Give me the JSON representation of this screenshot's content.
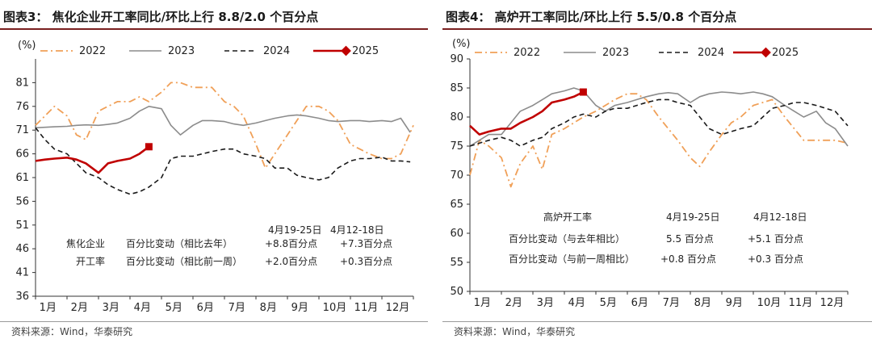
{
  "source_note": "资料来源：Wind，华泰研究",
  "chart_data": [
    {
      "type": "line",
      "title": "图表3：  焦化企业开工率同比/环比上行 8.8/2.0 个百分点",
      "ylabel": "(%)",
      "ylim": [
        36,
        86
      ],
      "yticks": [
        36,
        41,
        46,
        51,
        56,
        61,
        66,
        71,
        76,
        81
      ],
      "xlim": [
        1,
        13
      ],
      "month_labels": [
        "1月",
        "2月",
        "3月",
        "4月",
        "5月",
        "6月",
        "7月",
        "8月",
        "9月",
        "10月",
        "11月",
        "12月"
      ],
      "series": [
        {
          "name": "2022",
          "color": "#f0a058",
          "style": "dashdot",
          "x": [
            1.0,
            1.3,
            1.6,
            2.0,
            2.3,
            2.6,
            3.0,
            3.3,
            3.6,
            4.0,
            4.3,
            4.6,
            5.0,
            5.3,
            5.6,
            6.0,
            6.3,
            6.6,
            7.0,
            7.3,
            7.6,
            8.0,
            8.3,
            8.6,
            9.0,
            9.3,
            9.6,
            10.0,
            10.3,
            10.6,
            11.0,
            11.3,
            11.6,
            12.0,
            12.3,
            12.6,
            13.0
          ],
          "values": [
            72,
            74,
            76,
            74,
            70,
            69,
            75,
            76,
            77,
            77,
            78,
            77,
            79,
            81,
            81,
            80,
            80,
            80,
            77,
            76,
            74,
            68,
            63,
            66,
            70,
            73,
            76,
            76,
            75,
            73,
            68,
            67,
            66,
            65,
            65,
            66,
            72
          ]
        },
        {
          "name": "2023",
          "color": "#8c8c8c",
          "style": "solid",
          "x": [
            1.0,
            1.3,
            1.6,
            2.0,
            2.3,
            2.6,
            3.0,
            3.3,
            3.6,
            4.0,
            4.3,
            4.6,
            5.0,
            5.3,
            5.6,
            6.0,
            6.3,
            6.6,
            7.0,
            7.3,
            7.6,
            8.0,
            8.3,
            8.6,
            9.0,
            9.3,
            9.6,
            10.0,
            10.3,
            10.6,
            11.0,
            11.3,
            11.6,
            12.0,
            12.3,
            12.6,
            12.9
          ],
          "values": [
            71.5,
            71.6,
            71.7,
            71.8,
            72,
            72.1,
            72,
            72.2,
            72.5,
            73.5,
            75,
            76,
            75.5,
            72,
            70,
            72,
            73,
            73,
            72.8,
            72.3,
            72,
            72.5,
            73,
            73.5,
            74,
            74.2,
            74,
            73.5,
            73,
            72.8,
            73,
            73,
            72.8,
            73,
            72.8,
            73.5,
            70.5
          ]
        },
        {
          "name": "2024",
          "color": "#1a1a1a",
          "style": "dashed",
          "x": [
            1.0,
            1.3,
            1.6,
            2.0,
            2.3,
            2.6,
            3.0,
            3.3,
            3.6,
            4.0,
            4.3,
            4.6,
            5.0,
            5.3,
            5.6,
            6.0,
            6.3,
            6.6,
            7.0,
            7.3,
            7.6,
            8.0,
            8.3,
            8.6,
            9.0,
            9.3,
            9.6,
            10.0,
            10.3,
            10.6,
            11.0,
            11.3,
            11.6,
            12.0,
            12.3,
            12.6,
            12.9
          ],
          "values": [
            71.5,
            69,
            67,
            66,
            64,
            62,
            61,
            59.5,
            58.5,
            57.5,
            58,
            59,
            61,
            65,
            65.5,
            65.5,
            66,
            66.5,
            67,
            67,
            66,
            65.5,
            65,
            63,
            63,
            61.5,
            61,
            60.5,
            61,
            63,
            64.5,
            65,
            65,
            65.3,
            64.5,
            64.5,
            64.3
          ]
        },
        {
          "name": "2025",
          "color": "#c00000",
          "style": "solid-marker",
          "x": [
            1.0,
            1.3,
            1.6,
            2.0,
            2.3,
            2.6,
            3.0,
            3.3,
            3.6,
            4.0,
            4.3,
            4.6
          ],
          "values": [
            64.5,
            64.8,
            65,
            65.2,
            64.8,
            64,
            62,
            64,
            64.5,
            65,
            66,
            67.5
          ]
        }
      ],
      "annotation": {
        "col_current": "4月19-25日",
        "col_previous": "4月12-18日",
        "row_header_line1": "焦化企业",
        "row_header_line2": "开工率",
        "yoy_label": "百分比变动（相比去年）",
        "wow_label": "百分比变动（相比前一周）",
        "yoy_current": "+8.8百分点",
        "yoy_previous": "+7.3百分点",
        "wow_current": "+2.0百分点",
        "wow_previous": "+0.3百分点"
      }
    },
    {
      "type": "line",
      "title": "图表4：  高炉开工率同比/环比上行 5.5/0.8 个百分点",
      "ylabel": "(%)",
      "ylim": [
        50,
        90
      ],
      "yticks": [
        50,
        55,
        60,
        65,
        70,
        75,
        80,
        85,
        90
      ],
      "xlim": [
        1,
        13
      ],
      "month_labels": [
        "1月",
        "2月",
        "3月",
        "4月",
        "5月",
        "6月",
        "7月",
        "8月",
        "9月",
        "10月",
        "11月",
        "12月"
      ],
      "series": [
        {
          "name": "2022",
          "color": "#f0a058",
          "style": "dashdot",
          "x": [
            1.0,
            1.3,
            1.6,
            2.0,
            2.3,
            2.6,
            3.0,
            3.3,
            3.6,
            4.0,
            4.3,
            4.6,
            5.0,
            5.3,
            5.6,
            6.0,
            6.3,
            6.6,
            7.0,
            7.3,
            7.6,
            8.0,
            8.3,
            8.6,
            9.0,
            9.3,
            9.6,
            10.0,
            10.3,
            10.6,
            11.0,
            11.3,
            11.6,
            12.0,
            12.3,
            12.6,
            13.0
          ],
          "values": [
            70,
            76,
            75,
            73,
            68,
            72,
            75,
            71,
            77,
            78,
            79,
            80,
            81,
            82,
            83,
            84,
            84,
            83,
            80,
            78,
            76,
            73,
            71.5,
            74,
            77,
            79,
            80,
            82,
            82.5,
            83,
            80,
            78,
            76,
            76,
            76,
            76,
            75.5
          ]
        },
        {
          "name": "2023",
          "color": "#8c8c8c",
          "style": "solid",
          "x": [
            1.0,
            1.3,
            1.6,
            2.0,
            2.3,
            2.6,
            3.0,
            3.3,
            3.6,
            4.0,
            4.3,
            4.6,
            5.0,
            5.3,
            5.6,
            6.0,
            6.3,
            6.6,
            7.0,
            7.3,
            7.6,
            8.0,
            8.3,
            8.6,
            9.0,
            9.3,
            9.6,
            10.0,
            10.3,
            10.6,
            11.0,
            11.3,
            11.6,
            12.0,
            12.3,
            12.6,
            13.0
          ],
          "values": [
            75,
            76,
            77,
            77,
            79,
            81,
            82,
            83,
            84,
            84.5,
            85,
            84.5,
            82,
            81,
            82,
            82.5,
            83,
            83.5,
            84,
            84.2,
            84,
            82.5,
            83.5,
            84,
            84.3,
            84.2,
            84,
            84.3,
            84,
            83.5,
            82,
            81,
            80,
            81,
            79,
            78,
            75
          ]
        },
        {
          "name": "2024",
          "color": "#1a1a1a",
          "style": "dashed",
          "x": [
            1.0,
            1.3,
            1.6,
            2.0,
            2.3,
            2.6,
            3.0,
            3.3,
            3.6,
            4.0,
            4.3,
            4.6,
            5.0,
            5.3,
            5.6,
            6.0,
            6.3,
            6.6,
            7.0,
            7.3,
            7.6,
            8.0,
            8.3,
            8.6,
            9.0,
            9.3,
            9.6,
            10.0,
            10.3,
            10.6,
            11.0,
            11.3,
            11.6,
            12.0,
            12.3,
            12.6,
            13.0
          ],
          "values": [
            75,
            75.5,
            76,
            76.5,
            76,
            75,
            76,
            76.5,
            78,
            79,
            80,
            80.5,
            80,
            81,
            81.5,
            81.5,
            82,
            82.5,
            83,
            83,
            82.5,
            82,
            80,
            78,
            77,
            77.5,
            78,
            78.5,
            80,
            81.5,
            82,
            82.5,
            82.5,
            82,
            81.5,
            81,
            78.5
          ]
        },
        {
          "name": "2025",
          "color": "#c00000",
          "style": "solid-marker",
          "x": [
            1.0,
            1.3,
            1.6,
            2.0,
            2.3,
            2.6,
            3.0,
            3.3,
            3.6,
            4.0,
            4.3,
            4.6
          ],
          "values": [
            78.5,
            77,
            77.5,
            78,
            78,
            79,
            80,
            81,
            82.5,
            83,
            83.5,
            84.3
          ]
        }
      ],
      "annotation": {
        "col_current": "4月19-25日",
        "col_previous": "4月12-18日",
        "row_header": "高炉开工率",
        "yoy_label": "百分比变动（与去年相比）",
        "wow_label": "百分比变动（与前一周相比）",
        "yoy_current": "5.5 百分点",
        "yoy_previous": "+5.1 百分点",
        "wow_current": "+0.8 百分点",
        "wow_previous": "+0.3 百分点"
      }
    }
  ]
}
